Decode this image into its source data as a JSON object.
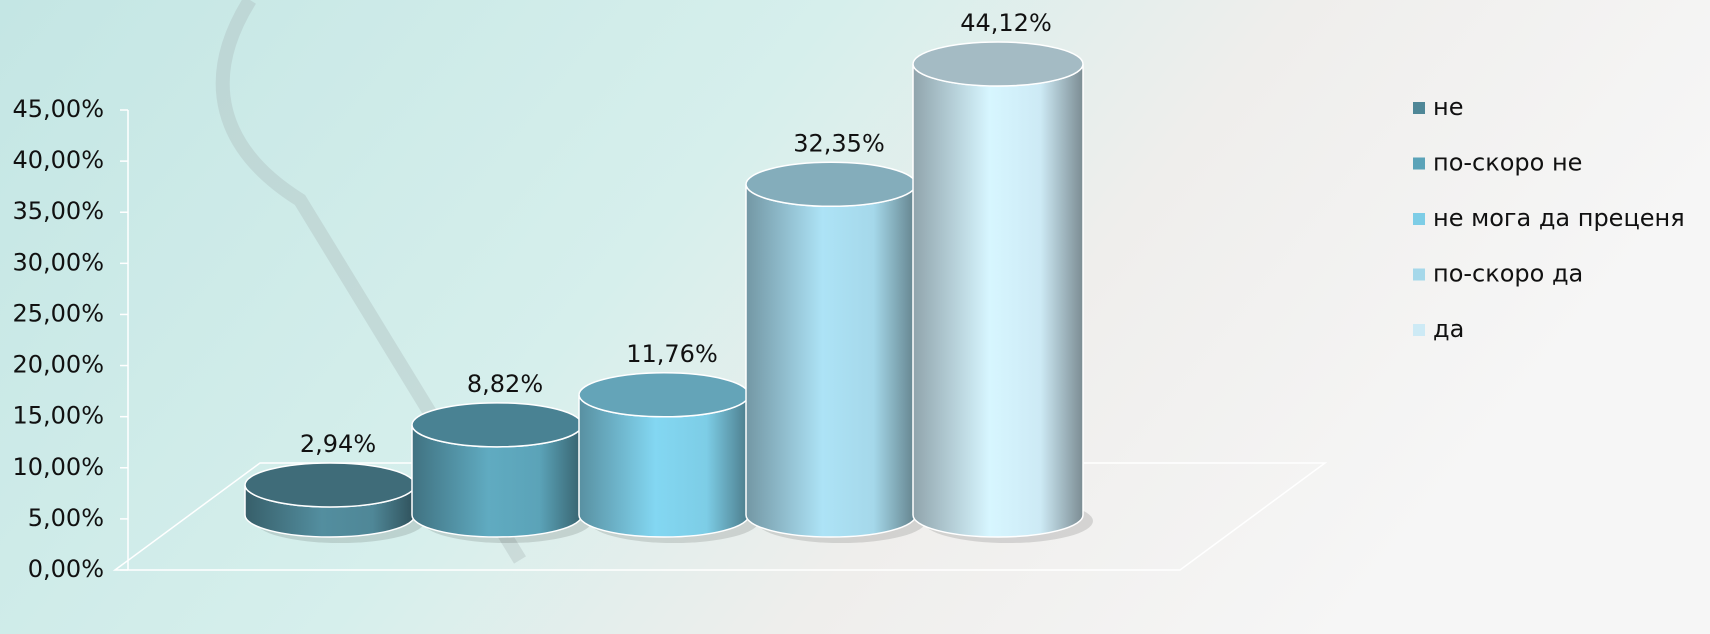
{
  "chart_data": {
    "type": "bar",
    "series": [
      {
        "name": "не",
        "color": "#4f8797",
        "values": [
          2.94
        ],
        "value_labels": [
          "2,94%"
        ]
      },
      {
        "name": "по-скоро не",
        "color": "#5ba3b8",
        "values": [
          8.82
        ],
        "value_labels": [
          "8,82%"
        ]
      },
      {
        "name": "не мога да преценя",
        "color": "#7dcde6",
        "values": [
          11.76
        ],
        "value_labels": [
          "11,76%"
        ]
      },
      {
        "name": "по-скоро да",
        "color": "#a5d8ea",
        "values": [
          32.35
        ],
        "value_labels": [
          "32,35%"
        ]
      },
      {
        "name": "да",
        "color": "#cdeaf5",
        "values": [
          44.12
        ],
        "value_labels": [
          "44,12%"
        ]
      }
    ],
    "ylim": [
      0,
      45
    ],
    "yticks": [
      {
        "value": 0,
        "label": "0,00%"
      },
      {
        "value": 5,
        "label": "5,00%"
      },
      {
        "value": 10,
        "label": "10,00%"
      },
      {
        "value": 15,
        "label": "15,00%"
      },
      {
        "value": 20,
        "label": "20,00%"
      },
      {
        "value": 25,
        "label": "25,00%"
      },
      {
        "value": 30,
        "label": "30,00%"
      },
      {
        "value": 35,
        "label": "35,00%"
      },
      {
        "value": 40,
        "label": "40,00%"
      },
      {
        "value": 45,
        "label": "45,00%"
      }
    ],
    "legend": "right"
  }
}
